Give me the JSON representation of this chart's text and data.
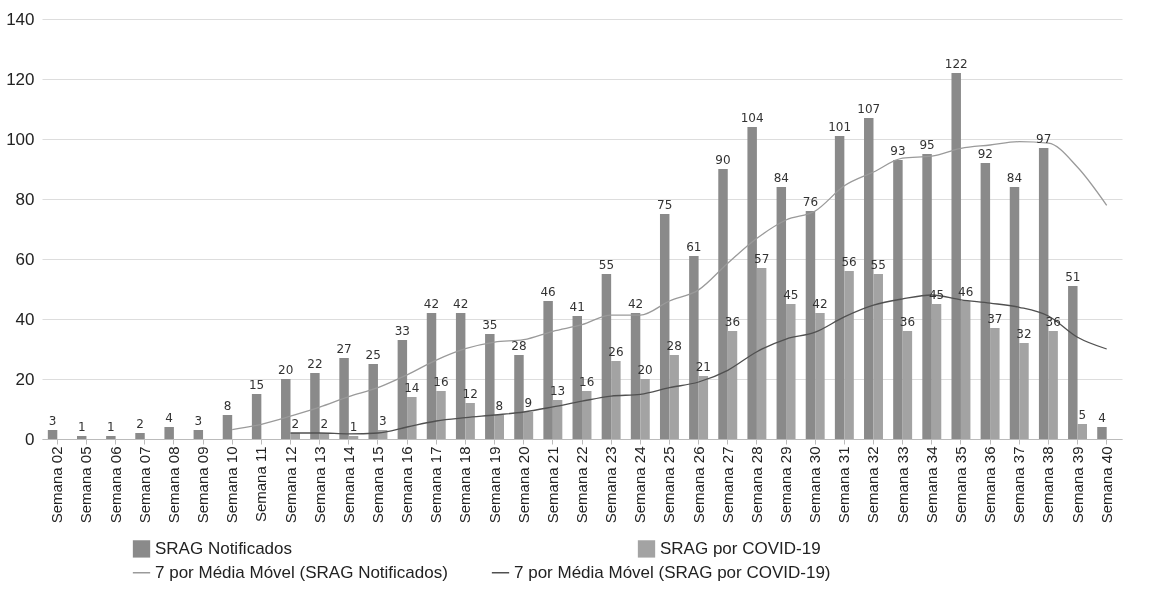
{
  "chart_data": {
    "type": "bar",
    "categories": [
      "Semana 02",
      "Semana 05",
      "Semana 06",
      "Semana 07",
      "Semana 08",
      "Semana 09",
      "Semana 10",
      "Semana 11",
      "Semana 12",
      "Semana 13",
      "Semana 14",
      "Semana 15",
      "Semana 16",
      "Semana 17",
      "Semana 18",
      "Semana 19",
      "Semana 20",
      "Semana 21",
      "Semana 22",
      "Semana 23",
      "Semana 24",
      "Semana 25",
      "Semana 26",
      "Semana 27",
      "Semana 28",
      "Semana 29",
      "Semana 30",
      "Semana 31",
      "Semana 32",
      "Semana 33",
      "Semana 34",
      "Semana 35",
      "Semana 36",
      "Semana 37",
      "Semana 38",
      "Semana 39",
      "Semana 40"
    ],
    "series": [
      {
        "name": "SRAG Notificados",
        "color": "#8a8a8a",
        "values": [
          3,
          1,
          1,
          2,
          4,
          3,
          8,
          15,
          20,
          22,
          27,
          25,
          33,
          42,
          42,
          35,
          28,
          46,
          41,
          55,
          42,
          75,
          61,
          90,
          104,
          84,
          76,
          101,
          107,
          93,
          95,
          122,
          92,
          84,
          97,
          51,
          4
        ],
        "value_labels": [
          "3",
          "1",
          "1",
          "2",
          "4",
          "3",
          "8",
          "15",
          "20",
          "22",
          "27",
          "25",
          "33",
          "42",
          "42",
          "35",
          "28",
          "46",
          "41",
          "55",
          "42",
          "75",
          "61",
          "90",
          "104",
          "84",
          "76",
          "101",
          "107",
          "93",
          "95",
          "122",
          "92",
          "84",
          "97",
          "51",
          "4"
        ]
      },
      {
        "name": "SRAG por COVID-19",
        "color": "#a3a3a3",
        "values": [
          null,
          null,
          null,
          null,
          null,
          null,
          null,
          null,
          2,
          2,
          1,
          3,
          14,
          16,
          12,
          8,
          9,
          13,
          16,
          26,
          20,
          28,
          21,
          36,
          57,
          45,
          42,
          56,
          55,
          36,
          45,
          46,
          37,
          32,
          36,
          5,
          null
        ],
        "value_labels": [
          null,
          null,
          null,
          null,
          null,
          null,
          null,
          null,
          "2",
          "2",
          "1",
          "3",
          "14",
          "16",
          "12",
          "8",
          "9",
          "13",
          "16",
          "26",
          "20",
          "28",
          "21",
          "36",
          "57",
          "45",
          "42",
          "56",
          "55",
          "36",
          "45",
          "46",
          "37",
          "32",
          "36",
          "5",
          null
        ]
      },
      {
        "name": "7 por Média Móvel (SRAG Notificados)",
        "type": "line",
        "color": "#9a9a9a",
        "values": [
          null,
          null,
          null,
          null,
          null,
          null,
          3.1,
          4.9,
          7.6,
          10.6,
          14.1,
          17.1,
          21.4,
          26.3,
          30.1,
          32.3,
          33.1,
          35.9,
          38.1,
          41.3,
          41.3,
          46,
          49.7,
          58.6,
          66.9,
          73,
          76,
          84.4,
          89,
          93.6,
          94.3,
          96.9,
          98,
          99.1,
          98.6,
          90.6,
          77.9
        ]
      },
      {
        "name": "7 por Média Móvel (SRAG por COVID-19)",
        "type": "line",
        "color": "#505050",
        "values": [
          null,
          null,
          null,
          null,
          null,
          null,
          null,
          null,
          2,
          2,
          1.7,
          2,
          4,
          6,
          7.1,
          8,
          9,
          10.7,
          12.6,
          14.3,
          14.9,
          17.1,
          19,
          22.9,
          29.1,
          33.3,
          35.6,
          40.7,
          44.6,
          46.7,
          48,
          46.4,
          45.3,
          43.9,
          41,
          33.9,
          30
        ]
      }
    ],
    "ylim": [
      0,
      140
    ],
    "yticks": [
      0,
      20,
      40,
      60,
      80,
      100,
      120,
      140
    ],
    "grid": "y",
    "legend": "bottom"
  }
}
